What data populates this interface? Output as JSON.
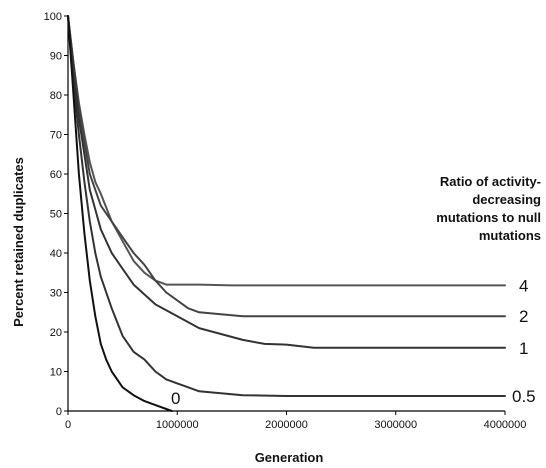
{
  "chart_data": {
    "type": "line",
    "xlabel": "Generation",
    "ylabel": "Percent retained duplicates",
    "xlim": [
      0,
      4000000
    ],
    "ylim": [
      0,
      100
    ],
    "x_ticks": [
      "0",
      "1000000",
      "2000000",
      "3000000",
      "4000000"
    ],
    "y_ticks": [
      "0",
      "10",
      "20",
      "30",
      "40",
      "50",
      "60",
      "70",
      "80",
      "90",
      "100"
    ],
    "grid": false,
    "legend": {
      "title_lines": [
        "Ratio of activity-",
        "decreasing",
        "mutations to null",
        "mutations"
      ],
      "placement": "right"
    },
    "series": [
      {
        "name": "4",
        "color": "#555555",
        "x": [
          0,
          50000,
          100000,
          150000,
          200000,
          250000,
          300000,
          400000,
          500000,
          600000,
          700000,
          800000,
          900000,
          1000000,
          1200000,
          1500000,
          2000000,
          3000000,
          4000000
        ],
        "y": [
          100,
          88,
          78,
          70,
          63,
          58,
          55,
          48,
          43,
          38,
          35,
          33,
          32,
          32,
          32,
          31.8,
          31.8,
          31.8,
          31.8
        ]
      },
      {
        "name": "2",
        "color": "#444444",
        "x": [
          0,
          50000,
          100000,
          150000,
          200000,
          250000,
          300000,
          400000,
          500000,
          600000,
          700000,
          800000,
          900000,
          1000000,
          1100000,
          1200000,
          1400000,
          1600000,
          2000000,
          3000000,
          4000000
        ],
        "y": [
          100,
          88,
          77,
          68,
          60,
          56,
          52,
          48,
          44,
          40,
          37,
          33,
          30,
          28,
          26,
          25,
          24.5,
          24,
          24,
          24,
          24
        ]
      },
      {
        "name": "1",
        "color": "#333333",
        "x": [
          0,
          50000,
          100000,
          150000,
          200000,
          250000,
          300000,
          400000,
          500000,
          600000,
          800000,
          1000000,
          1200000,
          1400000,
          1600000,
          1800000,
          2000000,
          2250000,
          3000000,
          4000000
        ],
        "y": [
          100,
          86,
          74,
          65,
          56,
          51,
          46,
          40,
          36,
          32,
          27,
          24,
          21,
          19.5,
          18,
          17,
          16.8,
          16,
          16,
          16
        ]
      },
      {
        "name": "0.5",
        "color": "#333333",
        "x": [
          0,
          50000,
          100000,
          150000,
          200000,
          250000,
          300000,
          400000,
          500000,
          600000,
          700000,
          800000,
          900000,
          1000000,
          1100000,
          1200000,
          1400000,
          1600000,
          2000000,
          3000000,
          4000000
        ],
        "y": [
          100,
          83,
          70,
          58,
          48,
          40,
          34,
          26,
          19,
          15,
          13,
          10,
          8,
          7,
          6,
          5,
          4.5,
          4,
          3.8,
          3.8,
          3.8
        ]
      },
      {
        "name": "0",
        "color": "#111111",
        "x": [
          0,
          50000,
          100000,
          150000,
          200000,
          250000,
          300000,
          350000,
          400000,
          500000,
          600000,
          700000,
          800000,
          900000,
          950000
        ],
        "y": [
          100,
          80,
          60,
          45,
          33,
          24,
          17,
          13,
          10,
          6,
          4,
          2.5,
          1.5,
          0.5,
          0
        ]
      }
    ]
  }
}
